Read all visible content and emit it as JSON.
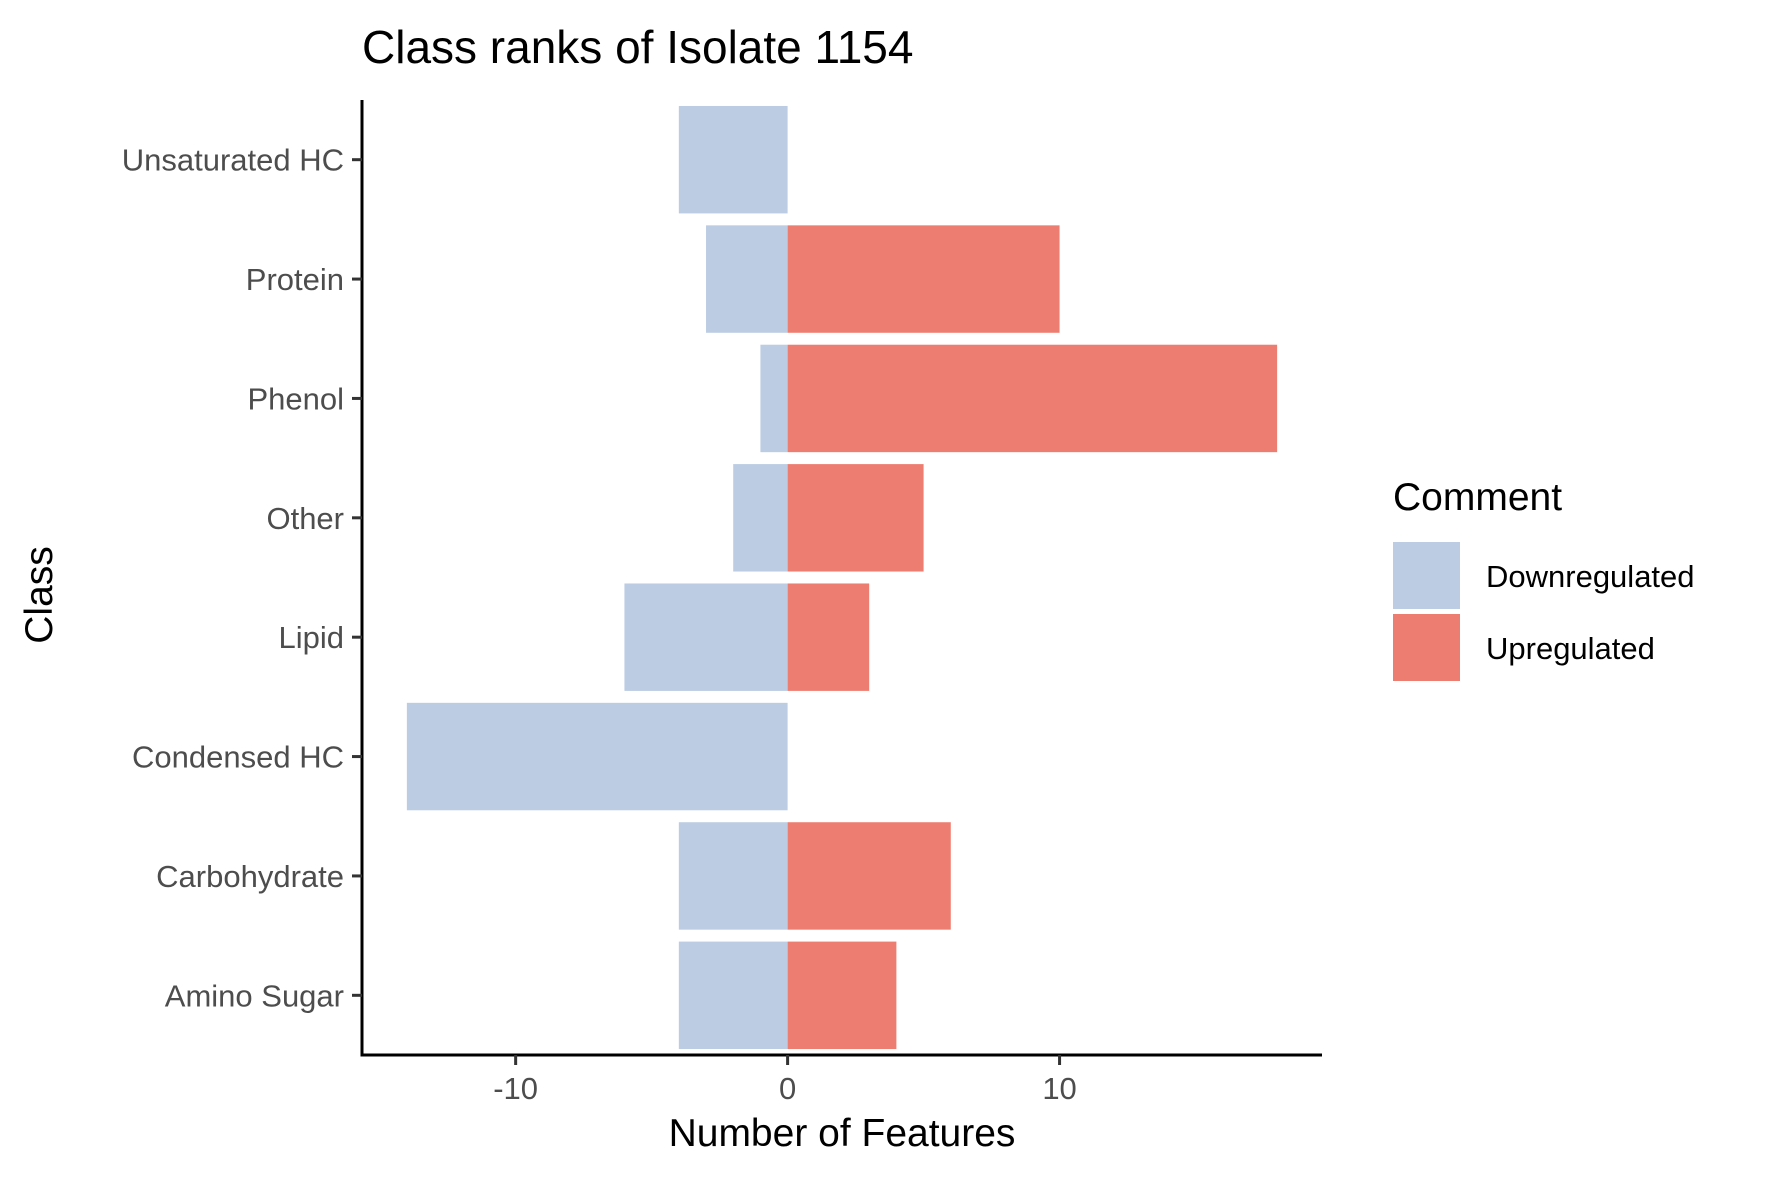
{
  "chart_data": {
    "type": "bar",
    "orientation": "horizontal",
    "stacked": true,
    "title": "Class ranks of Isolate 1154",
    "xlabel": "Number of Features",
    "ylabel": "Class",
    "categories": [
      "Amino Sugar",
      "Carbohydrate",
      "Condensed HC",
      "Lipid",
      "Other",
      "Phenol",
      "Protein",
      "Unsaturated HC"
    ],
    "series": [
      {
        "name": "Downregulated",
        "color": "#bccce3",
        "values": [
          -4,
          -4,
          -14,
          -6,
          -2,
          -1,
          -3,
          -4
        ]
      },
      {
        "name": "Upregulated",
        "color": "#ee7d71",
        "values": [
          4,
          6,
          0,
          3,
          5,
          18,
          10,
          0
        ]
      }
    ],
    "xlim": [
      -15.65,
      19.65
    ],
    "xticks": [
      -10,
      0,
      10
    ],
    "xtick_labels": [
      "-10",
      "0",
      "10"
    ],
    "grid": false,
    "legend": {
      "title": "Comment",
      "position": "right"
    }
  }
}
